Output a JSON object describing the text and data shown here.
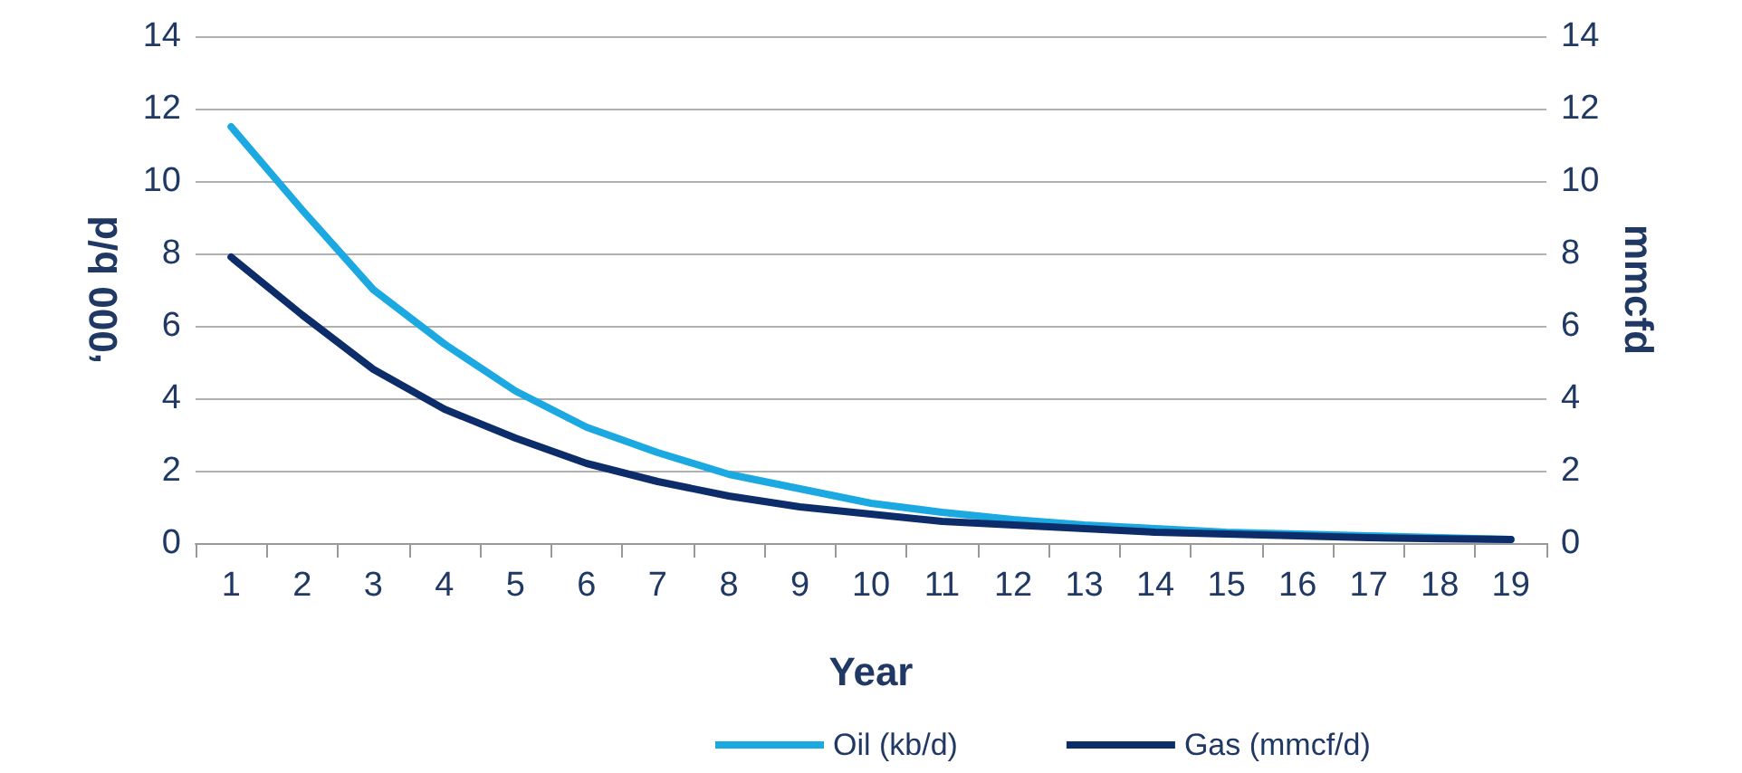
{
  "chart_data": {
    "type": "line",
    "xlabel": "Year",
    "ylabel": "‘000 b/d",
    "y2label": "mmcfd",
    "categories": [
      "1",
      "2",
      "3",
      "4",
      "5",
      "6",
      "7",
      "8",
      "9",
      "10",
      "11",
      "12",
      "13",
      "14",
      "15",
      "16",
      "17",
      "18",
      "19"
    ],
    "series": [
      {
        "name": "Oil (kb/d)",
        "color": "#1ca8e0",
        "values": [
          11.5,
          9.2,
          7.0,
          5.5,
          4.2,
          3.2,
          2.5,
          1.9,
          1.5,
          1.1,
          0.85,
          0.65,
          0.5,
          0.4,
          0.3,
          0.25,
          0.2,
          0.15,
          0.1
        ]
      },
      {
        "name": "Gas (mmcf/d)",
        "color": "#0c2c6a",
        "axis": "y2",
        "values": [
          7.9,
          6.3,
          4.8,
          3.7,
          2.9,
          2.2,
          1.7,
          1.3,
          1.0,
          0.8,
          0.6,
          0.5,
          0.4,
          0.3,
          0.25,
          0.2,
          0.15,
          0.12,
          0.1
        ]
      }
    ],
    "ylim": [
      0,
      14
    ],
    "yticks": [
      0,
      2,
      4,
      6,
      8,
      10,
      12,
      14
    ],
    "y2lim": [
      0,
      14
    ],
    "y2ticks": [
      0,
      2,
      4,
      6,
      8,
      10,
      12,
      14
    ],
    "grid": "y",
    "legend": "bottom",
    "marker": "none",
    "line_style": "solid"
  }
}
